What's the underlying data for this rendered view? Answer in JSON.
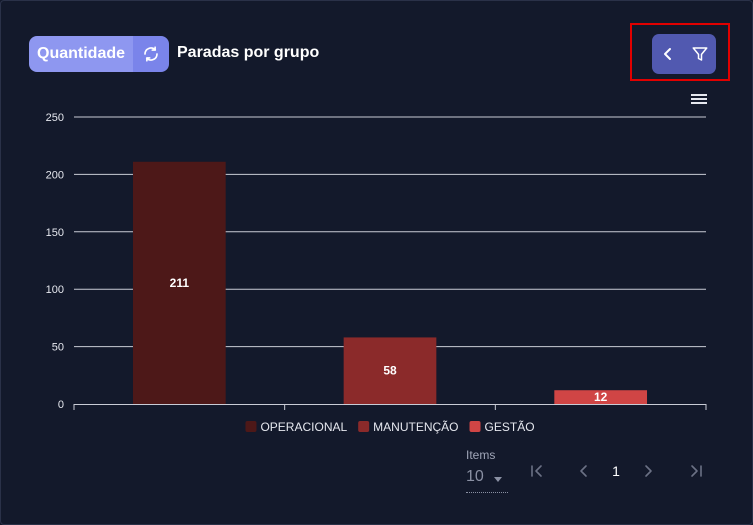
{
  "header": {
    "toggle_label": "Quantidade",
    "title": "Paradas por grupo"
  },
  "icons": {
    "refresh": "refresh-icon",
    "back": "chevron-left-icon",
    "filter": "filter-icon",
    "menu": "hamburger-menu-icon"
  },
  "colors": {
    "background": "#13192b",
    "toggle_label": "#8e97f0",
    "toggle_button": "#7a84ea",
    "button_group": "#5159b0",
    "highlight_border": "#e10000"
  },
  "chart_data": {
    "type": "bar",
    "categories": [
      "OPERACIONAL",
      "MANUTENÇÃO",
      "GESTÃO"
    ],
    "values": [
      211,
      58,
      12
    ],
    "data_labels": [
      "211",
      "58",
      "12"
    ],
    "colors": [
      "#4d1818",
      "#8b2a2a",
      "#d04545"
    ],
    "ylim": [
      0,
      250
    ],
    "yticks": [
      0,
      50,
      100,
      150,
      200,
      250
    ],
    "ytick_labels": [
      "0",
      "50",
      "100",
      "150",
      "200",
      "250"
    ],
    "grid": true,
    "legend_position": "bottom-center",
    "title": "",
    "xlabel": "",
    "ylabel": ""
  },
  "pagination": {
    "items_label": "Items",
    "page_size": "10",
    "current_page": "1"
  }
}
